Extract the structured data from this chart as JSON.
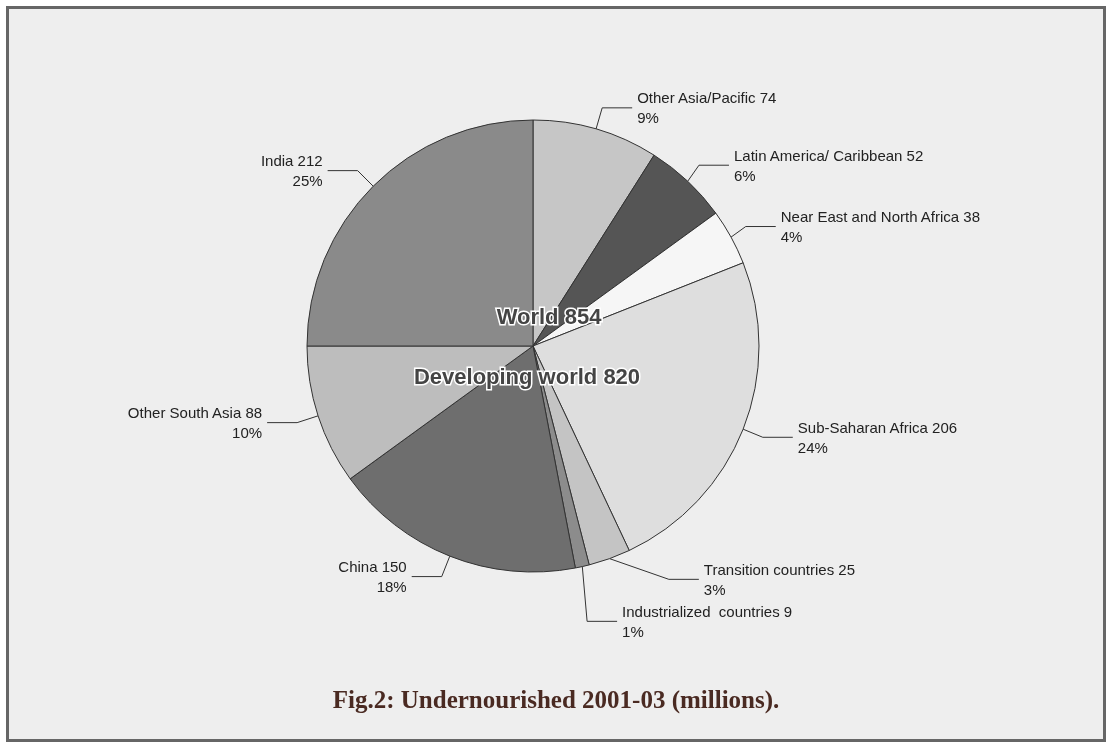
{
  "chart_data": {
    "type": "pie",
    "title": "Fig.2: Undernourished 2001-03 (millions).",
    "categories": [
      "Other Asia/Pacific 74",
      "Latin America/ Caribbean 52",
      "Near East and North Africa 38",
      "Sub-Saharan Africa 206",
      "Transition countries 25",
      "Industrialized  countries 9",
      "China 150",
      "Other South Asia 88",
      "India 212"
    ],
    "values": [
      9,
      6,
      4,
      24,
      3,
      1,
      18,
      10,
      25
    ],
    "value_labels": [
      "9%",
      "6%",
      "4%",
      "24%",
      "3%",
      "1%",
      "18%",
      "10%",
      "25%"
    ],
    "colors": [
      "#c6c6c6",
      "#555555",
      "#f6f6f6",
      "#dedede",
      "#c4c4c4",
      "#8c8c8c",
      "#6e6e6e",
      "#bdbdbd",
      "#8a8a8a"
    ],
    "data_labels": true,
    "annotations": [
      "World 854",
      "Developing world 820"
    ],
    "legend": false
  }
}
